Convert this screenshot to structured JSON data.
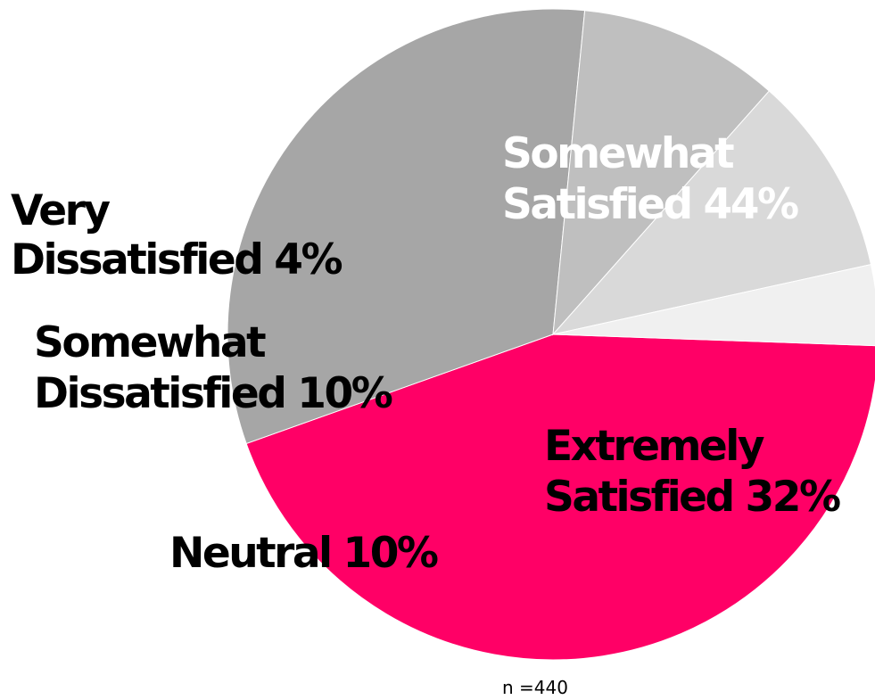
{
  "chart_data": {
    "type": "pie",
    "slices": [
      {
        "name": "Somewhat Satisfied",
        "value": 44,
        "color": "#ff0066",
        "label_lines": [
          "Somewhat",
          "Satisfied 44%"
        ],
        "label_color": "#ffffff"
      },
      {
        "name": "Extremely Satisfied",
        "value": 32,
        "color": "#a6a6a6",
        "label_lines": [
          "Extremely",
          "Satisfied 32%"
        ],
        "label_color": "#000000"
      },
      {
        "name": "Neutral",
        "value": 10,
        "color": "#bfbfbf",
        "label_lines": [
          "Neutral 10%"
        ],
        "label_color": "#000000"
      },
      {
        "name": "Somewhat Dissatisfied",
        "value": 10,
        "color": "#d9d9d9",
        "label_lines": [
          "Somewhat",
          "Dissatisfied 10%"
        ],
        "label_color": "#000000"
      },
      {
        "name": "Very Dissatisfied",
        "value": 4,
        "color": "#f0f0f0",
        "label_lines": [
          "Very",
          "Dissatisfied 4%"
        ],
        "label_color": "#000000"
      }
    ],
    "sample_size": "n  =440"
  }
}
